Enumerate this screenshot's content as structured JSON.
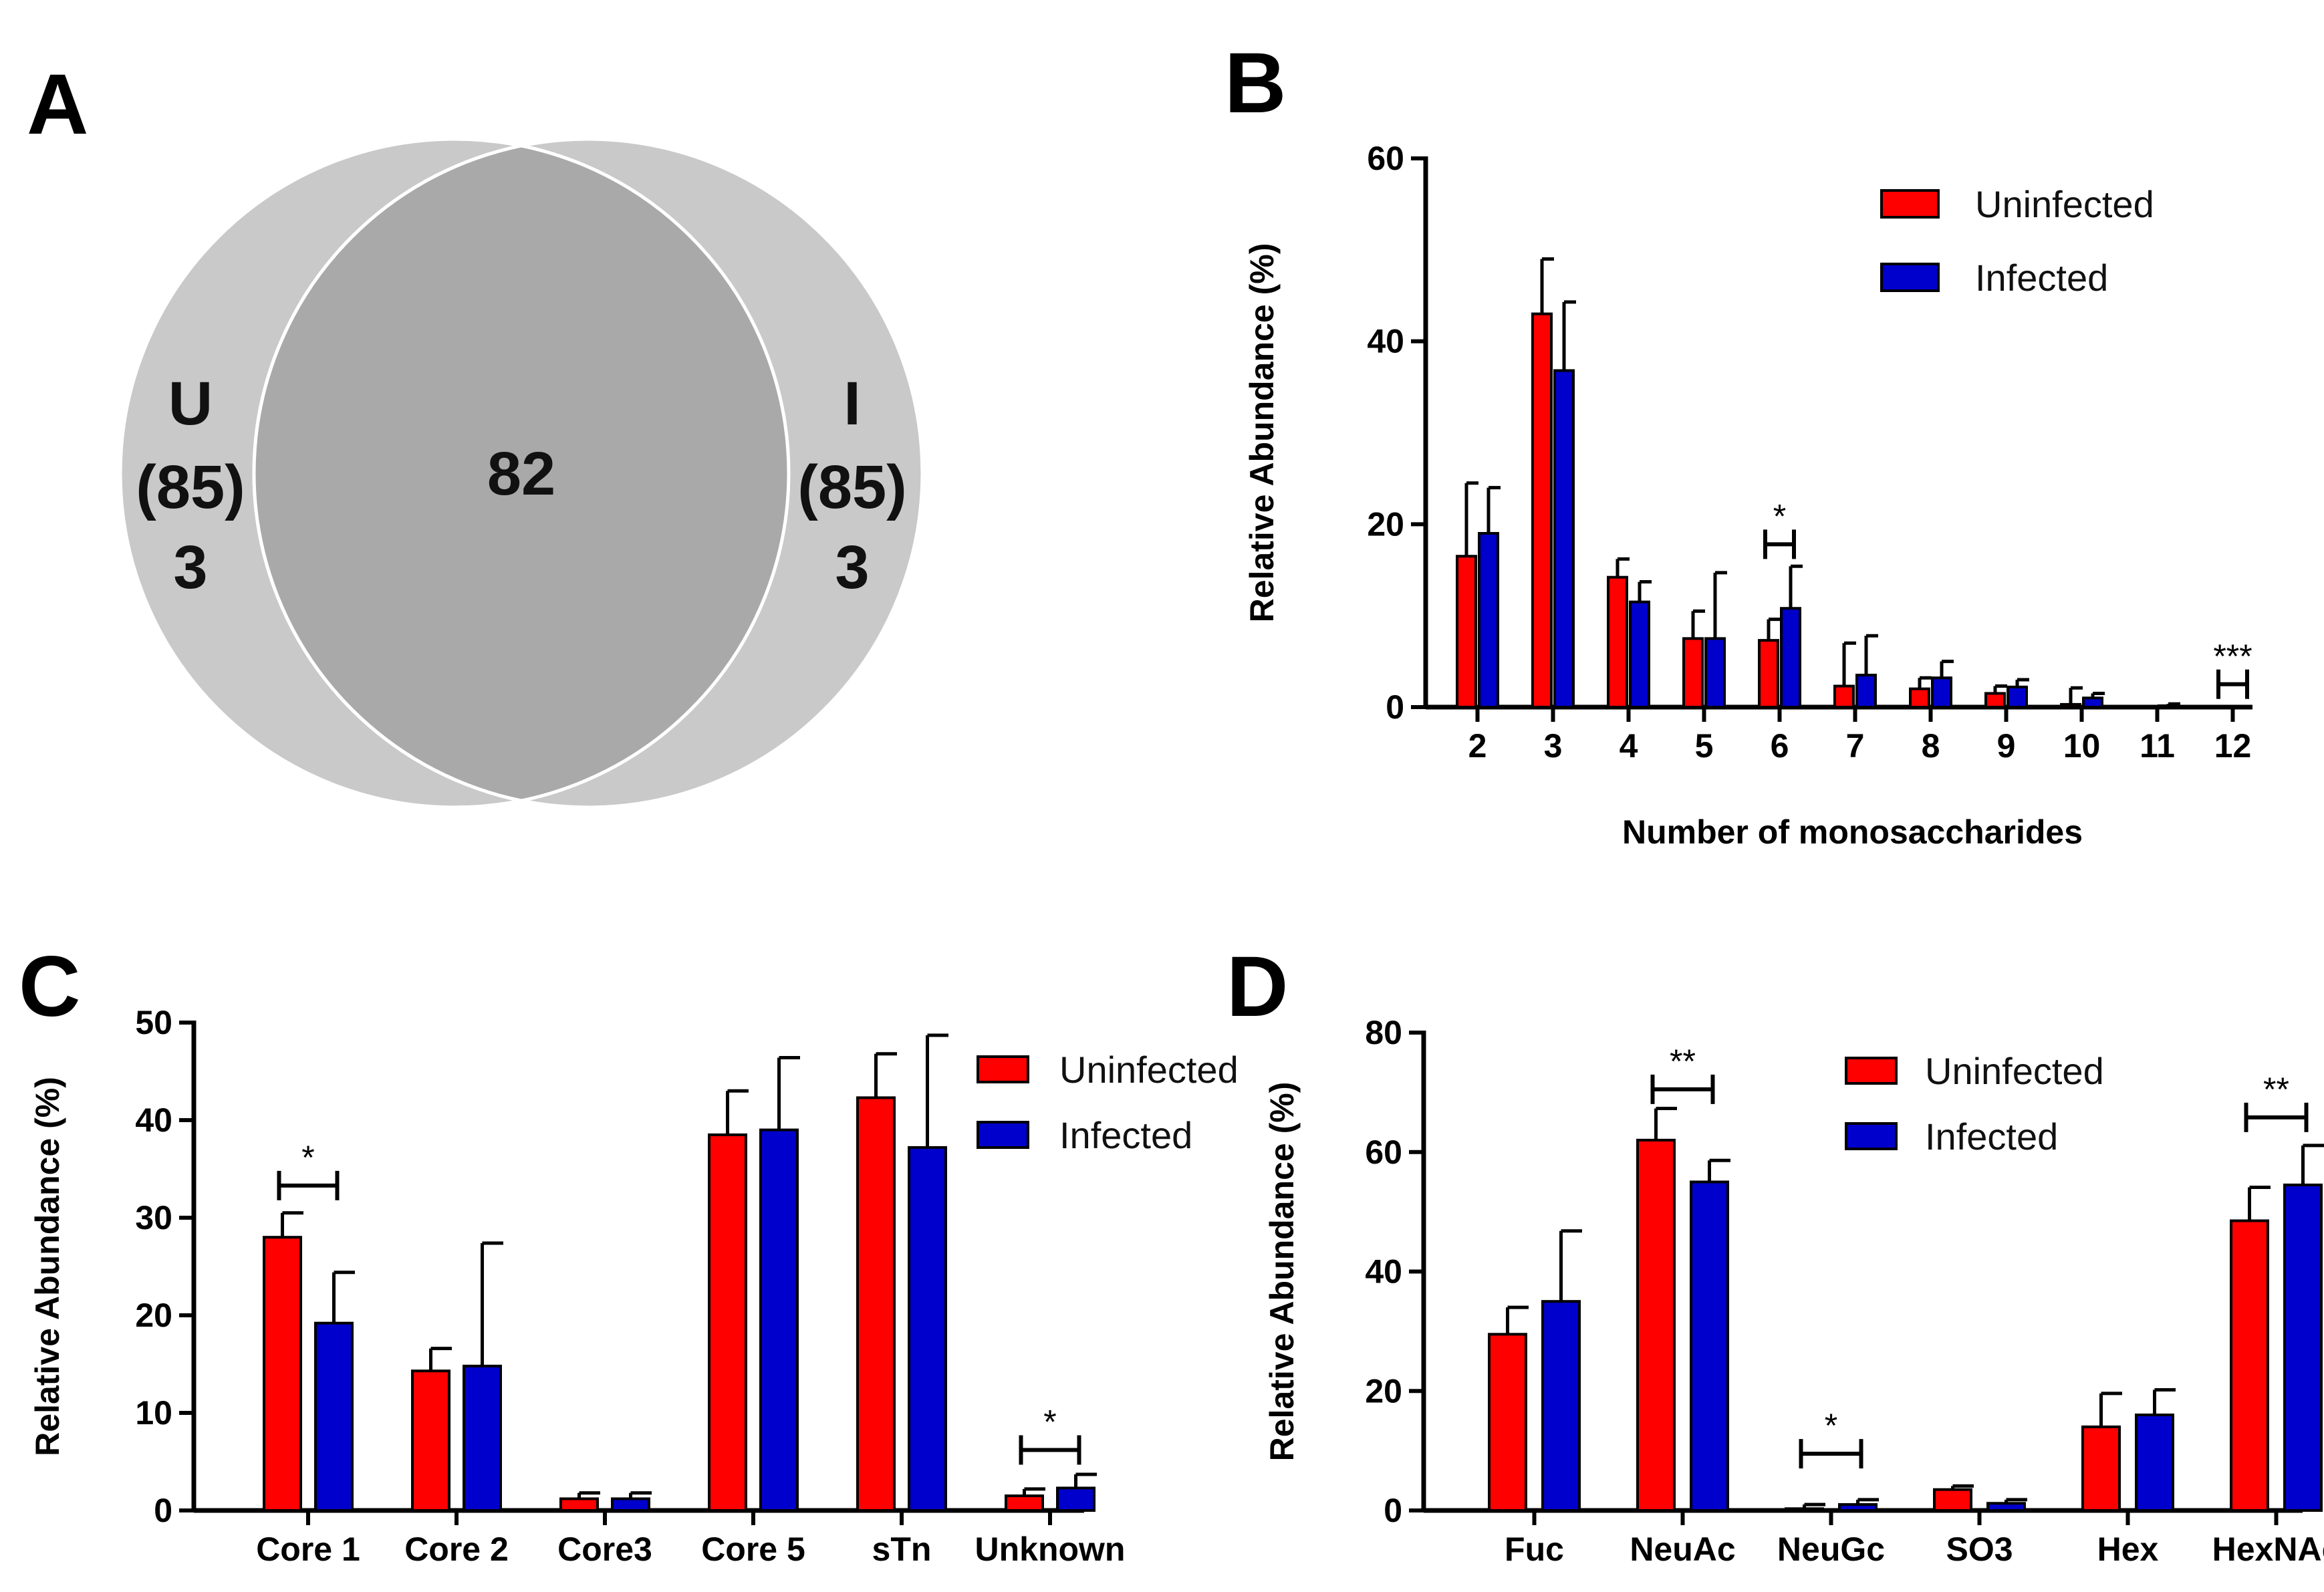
{
  "panels": {
    "A": "A",
    "B": "B",
    "C": "C",
    "D": "D"
  },
  "venn": {
    "left": {
      "label": "U",
      "total": "(85)",
      "unique": "3"
    },
    "right": {
      "label": "I",
      "total": "(85)",
      "unique": "3"
    },
    "overlap": "82",
    "colors": {
      "circle": "#c9c9c9",
      "overlap": "#a9a9a9",
      "edge": "#ffffff"
    }
  },
  "colors": {
    "uninfected": "#ff0000",
    "infected": "#0000cc"
  },
  "chart_data": [
    {
      "id": "B",
      "type": "bar",
      "title": "",
      "xlabel": "Number of monosaccharides",
      "ylabel": "Relative Abundance (%)",
      "ylim": [
        0,
        60
      ],
      "yticks": [
        0,
        20,
        40,
        60
      ],
      "legend_position": "top-right",
      "categories": [
        "2",
        "3",
        "4",
        "5",
        "6",
        "7",
        "8",
        "9",
        "10",
        "11",
        "12"
      ],
      "series": [
        {
          "name": "Uninfected",
          "values": [
            16.5,
            43,
            14.2,
            7.5,
            7.3,
            2.3,
            2.0,
            1.5,
            0.3,
            0,
            0
          ],
          "errors": [
            8,
            6,
            2,
            3,
            2.3,
            4.7,
            1.2,
            0.8,
            1.8,
            0,
            0
          ]
        },
        {
          "name": "Infected",
          "values": [
            19,
            36.8,
            11.5,
            7.5,
            10.8,
            3.5,
            3.2,
            2.2,
            1.0,
            0.15,
            0
          ],
          "errors": [
            5,
            7.5,
            2.2,
            7.2,
            4.6,
            4.3,
            1.8,
            0.8,
            0.5,
            0.2,
            0
          ]
        }
      ],
      "significance": [
        {
          "category": "6",
          "label": "*"
        },
        {
          "category": "12",
          "label": "***"
        }
      ]
    },
    {
      "id": "C",
      "type": "bar",
      "title": "",
      "xlabel": "",
      "ylabel": "Relative Abundance (%)",
      "ylim": [
        0,
        50
      ],
      "yticks": [
        0,
        10,
        20,
        30,
        40,
        50
      ],
      "legend_position": "top-right",
      "categories": [
        "Core 1",
        "Core 2",
        "Core3",
        "Core 5",
        "sTn",
        "Unknown"
      ],
      "series": [
        {
          "name": "Uninfected",
          "values": [
            28,
            14.3,
            1.2,
            38.5,
            42.3,
            1.5
          ],
          "errors": [
            2.5,
            2.3,
            0.6,
            4.5,
            4.5,
            0.7
          ]
        },
        {
          "name": "Infected",
          "values": [
            19.2,
            14.8,
            1.2,
            39,
            37.2,
            2.3
          ],
          "errors": [
            5.2,
            12.6,
            0.6,
            7.4,
            11.5,
            1.4
          ]
        }
      ],
      "significance": [
        {
          "category": "Core 1",
          "label": "*"
        },
        {
          "category": "Unknown",
          "label": "*"
        }
      ]
    },
    {
      "id": "D",
      "type": "bar",
      "title": "",
      "xlabel": "",
      "ylabel": "Relative Abundance (%)",
      "ylim": [
        0,
        80
      ],
      "yticks": [
        0,
        20,
        40,
        60,
        80
      ],
      "legend_position": "top-right",
      "categories": [
        "Fuc",
        "NeuAc",
        "NeuGc",
        "SO3",
        "Hex",
        "HexNAc"
      ],
      "series": [
        {
          "name": "Uninfected",
          "values": [
            29.5,
            62,
            0.3,
            3.5,
            14,
            48.5
          ],
          "errors": [
            4.5,
            5.3,
            0.7,
            0.6,
            5.6,
            5.6
          ]
        },
        {
          "name": "Infected",
          "values": [
            35,
            55,
            1.0,
            1.2,
            16,
            54.5
          ],
          "errors": [
            11.8,
            3.6,
            0.8,
            0.6,
            4.2,
            6.6
          ]
        }
      ],
      "significance": [
        {
          "category": "NeuAc",
          "label": "**"
        },
        {
          "category": "NeuGc",
          "label": "*"
        },
        {
          "category": "HexNAc",
          "label": "**"
        }
      ]
    }
  ]
}
